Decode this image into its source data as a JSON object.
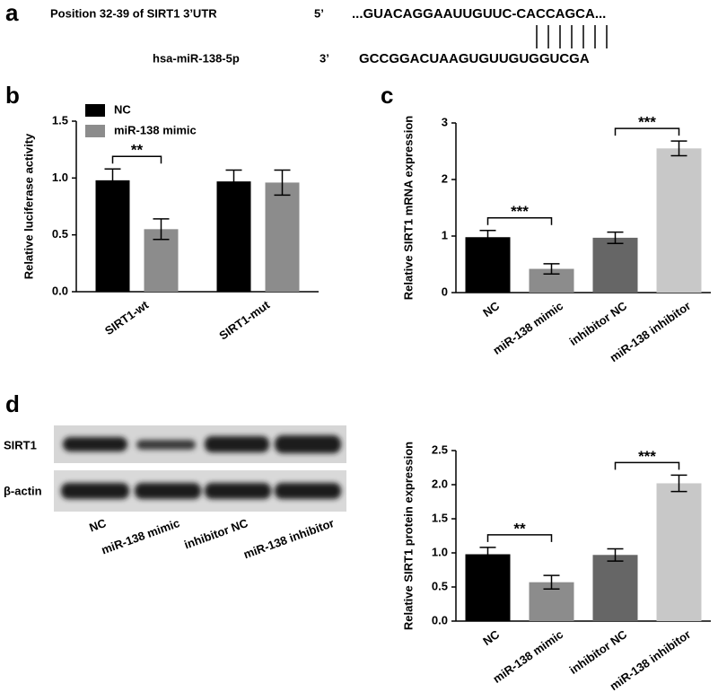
{
  "panel_labels": [
    "a",
    "b",
    "c",
    "d"
  ],
  "alignment": {
    "target_name": "Position 32-39 of SIRT1 3’UTR",
    "target_end": "5’",
    "target_seq": "...GUACAGGAAUUGUUC-CACCAGCA...",
    "mirna_name": "hsa-miR-138-5p",
    "mirna_end": "3’",
    "mirna_seq": "GCCGGACUAAGUGUUGUGGUCGA"
  },
  "blot": {
    "rows": [
      "SIRT1",
      "β-actin"
    ],
    "lanes": [
      "NC",
      "miR-138 mimic",
      "inhibitor NC",
      "miR-138 inhibitor"
    ]
  },
  "chart_data": [
    {
      "type": "bar",
      "y_label": "Relative luciferase activity",
      "categories": [
        "SIRT1-wt",
        "SIRT1-mut"
      ],
      "series": [
        {
          "name": "NC",
          "color": "#000000",
          "values": [
            0.98,
            0.97
          ],
          "errors": [
            0.1,
            0.1
          ]
        },
        {
          "name": "miR-138 mimic",
          "color": "#8c8c8c",
          "values": [
            0.55,
            0.96
          ],
          "errors": [
            0.09,
            0.11
          ]
        }
      ],
      "ylim": [
        0,
        1.5
      ],
      "yticks": [
        {
          "value": 0,
          "label": "0.0"
        },
        {
          "value": 0.5,
          "label": "0.5"
        },
        {
          "value": 1,
          "label": "1.0"
        },
        {
          "value": 1.5,
          "label": "1.5"
        }
      ],
      "legend": "top-left",
      "annotations": [
        {
          "text": "**",
          "category": "SIRT1-wt"
        }
      ]
    },
    {
      "type": "bar",
      "y_label": "Relative SIRT1 mRNA expression",
      "categories": [
        "NC",
        "miR-138 mimic",
        "inhibitor NC",
        "miR-138 inhibitor"
      ],
      "values": [
        0.98,
        0.42,
        0.97,
        2.55
      ],
      "errors": [
        0.12,
        0.09,
        0.1,
        0.13
      ],
      "colors": [
        "#000000",
        "#8c8c8c",
        "#666666",
        "#c8c8c8"
      ],
      "ylim": [
        0,
        3
      ],
      "yticks": [
        0,
        1,
        2,
        3
      ],
      "annotations": [
        {
          "text": "***",
          "categories": [
            "NC",
            "miR-138 mimic"
          ]
        },
        {
          "text": "***",
          "categories": [
            "inhibitor NC",
            "miR-138 inhibitor"
          ]
        }
      ]
    },
    {
      "type": "bar",
      "y_label": "Relative SIRT1 protein expression",
      "categories": [
        "NC",
        "miR-138 mimic",
        "inhibitor NC",
        "miR-138 inhibitor"
      ],
      "values": [
        0.98,
        0.57,
        0.97,
        2.02
      ],
      "errors": [
        0.1,
        0.1,
        0.09,
        0.12
      ],
      "colors": [
        "#000000",
        "#8c8c8c",
        "#666666",
        "#c8c8c8"
      ],
      "ylim": [
        0,
        2.5
      ],
      "yticks": [
        {
          "value": 0,
          "label": "0.0"
        },
        {
          "value": 0.5,
          "label": "0.5"
        },
        {
          "value": 1,
          "label": "1.0"
        },
        {
          "value": 1.5,
          "label": "1.5"
        },
        {
          "value": 2,
          "label": "2.0"
        },
        {
          "value": 2.5,
          "label": "2.5"
        }
      ],
      "annotations": [
        {
          "text": "**",
          "categories": [
            "NC",
            "miR-138 mimic"
          ]
        },
        {
          "text": "***",
          "categories": [
            "inhibitor NC",
            "miR-138 inhibitor"
          ]
        }
      ]
    }
  ]
}
